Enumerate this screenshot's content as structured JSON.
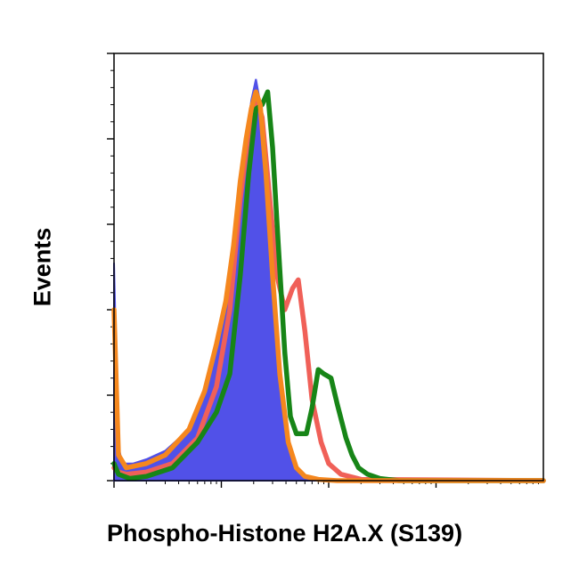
{
  "chart_data": {
    "type": "line",
    "title": "",
    "xlabel": "Phospho-Histone H2A.X (S139)",
    "ylabel": "Events",
    "xscale": "log",
    "xlim": [
      0.1,
      1000
    ],
    "ylim": [
      0,
      100
    ],
    "grid": false,
    "legend": "none",
    "series": [
      {
        "color": "#5151e8",
        "style": "filled",
        "x": [
          0.1,
          0.11,
          0.12,
          0.15,
          0.2,
          0.3,
          0.5,
          0.7,
          0.9,
          1.1,
          1.3,
          1.5,
          1.7,
          1.9,
          2.1,
          2.4,
          2.7,
          3.1,
          3.6,
          4.2,
          5,
          6,
          8,
          12,
          20,
          1000
        ],
        "y": [
          51,
          8,
          4,
          4,
          5,
          7,
          12,
          20,
          31,
          41,
          52,
          68,
          80,
          89,
          94,
          86,
          66,
          43,
          22,
          8,
          3,
          1,
          0.3,
          0.1,
          0,
          0
        ]
      },
      {
        "color": "#f06058",
        "style": "line",
        "x": [
          0.1,
          0.11,
          0.13,
          0.2,
          0.35,
          0.6,
          0.9,
          1.2,
          1.5,
          1.8,
          2.1,
          2.4,
          2.8,
          3.3,
          3.9,
          4.6,
          5.2,
          6,
          7,
          8.5,
          10,
          13,
          20,
          1000
        ],
        "y": [
          3,
          2,
          1.5,
          2,
          4,
          10,
          22,
          40,
          66,
          82,
          90,
          85,
          67,
          48,
          40,
          45,
          47,
          35,
          19,
          9,
          4,
          1.5,
          0.3,
          0
        ]
      },
      {
        "color": "#178517",
        "style": "line",
        "x": [
          0.1,
          0.11,
          0.14,
          0.2,
          0.35,
          0.6,
          0.9,
          1.2,
          1.5,
          1.8,
          2.1,
          2.4,
          2.7,
          3,
          3.4,
          3.9,
          4.4,
          5,
          5.5,
          6.2,
          7,
          8,
          9,
          10.5,
          12,
          14.5,
          16.5,
          19,
          23,
          30,
          45,
          80,
          1000
        ],
        "y": [
          4,
          1.5,
          0.5,
          1,
          3,
          9,
          16,
          25,
          48,
          72,
          87,
          88,
          91,
          78,
          55,
          30,
          15,
          11,
          11,
          11,
          17,
          26,
          25,
          24,
          18,
          10,
          6,
          3,
          1.5,
          0.5,
          0,
          0,
          0
        ]
      },
      {
        "color": "#f5871e",
        "style": "line",
        "x": [
          0.1,
          0.11,
          0.13,
          0.2,
          0.3,
          0.5,
          0.7,
          0.9,
          1.1,
          1.3,
          1.5,
          1.7,
          1.9,
          2.1,
          2.3,
          2.6,
          3,
          3.5,
          4.2,
          5,
          6,
          8,
          12,
          1000
        ],
        "y": [
          40,
          6,
          3,
          4,
          6,
          12,
          21,
          32,
          42,
          55,
          70,
          80,
          87,
          91,
          88,
          72,
          48,
          25,
          9,
          3,
          1,
          0.3,
          0,
          0
        ]
      }
    ]
  }
}
